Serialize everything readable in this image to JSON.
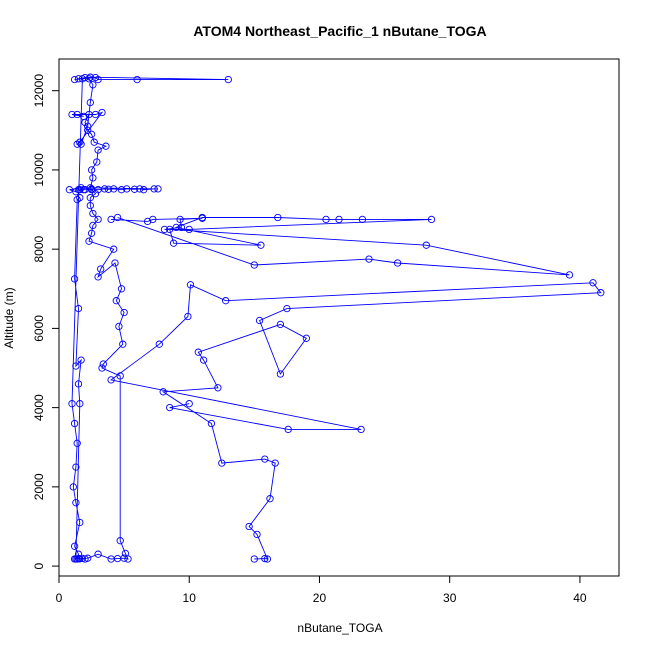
{
  "chart_data": {
    "type": "scatter",
    "title": "ATOM4 Northeast_Pacific_1 nButane_TOGA",
    "xlabel": "nButane_TOGA",
    "ylabel": "Altitude (m)",
    "xlim": [
      0,
      43
    ],
    "ylim": [
      -250,
      12800
    ],
    "x_ticks": [
      0,
      10,
      20,
      30,
      40
    ],
    "y_ticks": [
      0,
      2000,
      4000,
      6000,
      8000,
      10000,
      12000
    ],
    "series_color": "#0000ff",
    "series": [
      {
        "points": [
          [
            1.2,
            180
          ],
          [
            1.5,
            190
          ],
          [
            2.0,
            180
          ],
          [
            1.8,
            195
          ],
          [
            1.6,
            185
          ],
          [
            1.4,
            180
          ],
          [
            2.2,
            200
          ],
          [
            3.0,
            300
          ],
          [
            4.0,
            180
          ],
          [
            4.5,
            190
          ],
          [
            5.0,
            200
          ],
          [
            5.3,
            180
          ],
          [
            5.1,
            320
          ],
          [
            4.7,
            640
          ],
          [
            4.7,
            4800
          ],
          [
            3.3,
            5000
          ],
          [
            3.4,
            5100
          ],
          [
            4.9,
            5600
          ],
          [
            4.6,
            6050
          ],
          [
            5.0,
            6400
          ],
          [
            4.4,
            6700
          ],
          [
            4.8,
            7000
          ],
          [
            4.3,
            7650
          ],
          [
            3.0,
            7300
          ],
          [
            3.2,
            7500
          ],
          [
            4.2,
            8000
          ],
          [
            2.3,
            8200
          ],
          [
            2.5,
            8400
          ],
          [
            2.6,
            8600
          ],
          [
            3.0,
            8750
          ],
          [
            2.6,
            8900
          ],
          [
            2.4,
            9100
          ],
          [
            2.4,
            9300
          ],
          [
            2.8,
            9400
          ],
          [
            2.5,
            9500
          ],
          [
            2.0,
            9500
          ],
          [
            1.9,
            9500
          ],
          [
            1.6,
            9500
          ],
          [
            1.5,
            9500
          ],
          [
            1.3,
            9450
          ],
          [
            0.8,
            9500
          ],
          [
            1.7,
            9550
          ],
          [
            2.5,
            9520
          ],
          [
            3.0,
            9500
          ],
          [
            3.5,
            9520
          ],
          [
            3.8,
            9510
          ],
          [
            4.2,
            9520
          ],
          [
            4.8,
            9500
          ],
          [
            5.2,
            9520
          ],
          [
            5.8,
            9510
          ],
          [
            6.2,
            9520
          ],
          [
            6.5,
            9500
          ],
          [
            7.3,
            9520
          ],
          [
            7.6,
            9520
          ],
          [
            2.4,
            9550
          ],
          [
            2.6,
            9800
          ],
          [
            2.5,
            10000
          ],
          [
            2.9,
            10200
          ],
          [
            3.0,
            10500
          ],
          [
            3.6,
            10600
          ],
          [
            2.7,
            10700
          ],
          [
            2.5,
            10900
          ],
          [
            2.2,
            11000
          ],
          [
            2.0,
            11200
          ],
          [
            2.3,
            11400
          ],
          [
            1.4,
            11400
          ],
          [
            1.9,
            11350
          ],
          [
            1.0,
            11400
          ],
          [
            2.8,
            11400
          ],
          [
            3.3,
            11450
          ],
          [
            1.6,
            10700
          ],
          [
            1.4,
            10650
          ],
          [
            1.7,
            10650
          ],
          [
            2.2,
            11100
          ],
          [
            2.4,
            11700
          ],
          [
            2.6,
            12150
          ],
          [
            2.3,
            12300
          ],
          [
            2.0,
            12330
          ],
          [
            1.5,
            12300
          ],
          [
            1.2,
            12280
          ],
          [
            2.8,
            12330
          ],
          [
            3.0,
            12280
          ],
          [
            6.0,
            12280
          ],
          [
            13.0,
            12280
          ],
          [
            2.4,
            12340
          ],
          [
            1.8,
            12300
          ],
          [
            1.0,
            4100
          ],
          [
            1.2,
            3600
          ],
          [
            1.4,
            3100
          ],
          [
            1.3,
            2500
          ],
          [
            1.1,
            2000
          ],
          [
            1.3,
            1600
          ],
          [
            1.6,
            1100
          ],
          [
            1.2,
            500
          ],
          [
            1.5,
            300
          ],
          [
            1.3,
            180
          ],
          [
            1.6,
            4100
          ],
          [
            1.5,
            4600
          ],
          [
            1.7,
            5200
          ],
          [
            1.3,
            5050
          ],
          [
            1.5,
            6500
          ],
          [
            1.2,
            7250
          ],
          [
            1.4,
            9250
          ],
          [
            1.6,
            9300
          ]
        ]
      },
      {
        "points": [
          [
            15.0,
            180
          ],
          [
            15.8,
            190
          ],
          [
            16.0,
            180
          ],
          [
            15.2,
            800
          ],
          [
            14.6,
            1000
          ],
          [
            16.2,
            1700
          ],
          [
            16.6,
            2600
          ],
          [
            15.8,
            2700
          ],
          [
            12.5,
            2600
          ],
          [
            11.7,
            3600
          ],
          [
            8.0,
            4400
          ],
          [
            12.2,
            4500
          ],
          [
            11.1,
            5200
          ],
          [
            10.7,
            5400
          ],
          [
            17.0,
            6100
          ],
          [
            19.0,
            5750
          ],
          [
            17.0,
            4850
          ],
          [
            15.4,
            6200
          ],
          [
            17.5,
            6500
          ],
          [
            41.6,
            6900
          ],
          [
            41.0,
            7150
          ],
          [
            12.8,
            6700
          ],
          [
            10.1,
            7100
          ],
          [
            9.9,
            6300
          ],
          [
            7.7,
            5600
          ],
          [
            4.0,
            4700
          ],
          [
            23.2,
            3450
          ],
          [
            17.6,
            3450
          ],
          [
            8.5,
            4000
          ],
          [
            10.0,
            4100
          ]
        ]
      },
      {
        "points": [
          [
            4.5,
            8800
          ],
          [
            15.0,
            7600
          ],
          [
            23.8,
            7750
          ],
          [
            26.0,
            7650
          ],
          [
            39.2,
            7350
          ],
          [
            28.2,
            8100
          ],
          [
            8.5,
            8500
          ],
          [
            8.8,
            8150
          ],
          [
            15.5,
            8100
          ],
          [
            9.0,
            8550
          ],
          [
            11.0,
            8800
          ],
          [
            16.8,
            8800
          ],
          [
            20.5,
            8750
          ],
          [
            21.5,
            8750
          ],
          [
            23.3,
            8750
          ],
          [
            28.6,
            8750
          ],
          [
            10.0,
            8500
          ],
          [
            8.1,
            8500
          ],
          [
            9.4,
            8550
          ],
          [
            9.3,
            8750
          ],
          [
            11.0,
            8780
          ],
          [
            7.2,
            8750
          ],
          [
            6.8,
            8700
          ],
          [
            4.0,
            8750
          ]
        ]
      }
    ]
  }
}
